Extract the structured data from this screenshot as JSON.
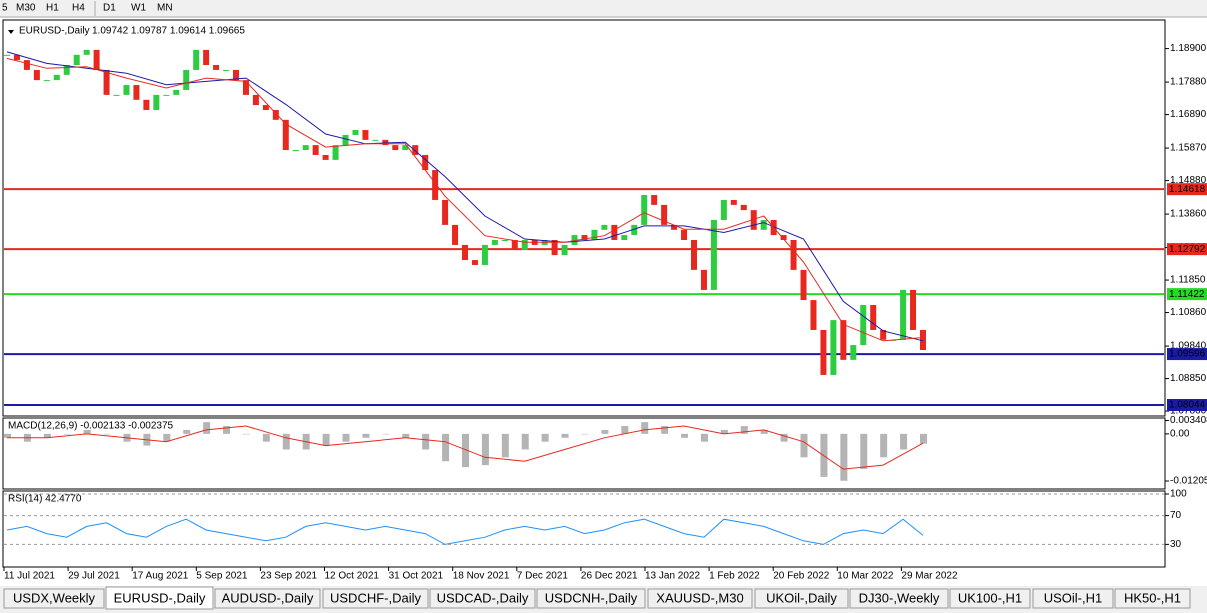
{
  "toolbar": {
    "timeframes": [
      "5",
      "M30",
      "H1",
      "H4",
      "D1",
      "W1",
      "MN"
    ]
  },
  "chart_data": [
    {
      "type": "candlestick",
      "title": "EURUSD-,Daily",
      "ohlc_label": "1.09742 1.09787 1.09614 1.09665",
      "up_color": "#2ecc40",
      "down_color": "#e8281e",
      "closes": [
        1.1871,
        1.1855,
        1.1825,
        1.1794,
        1.1794,
        1.181,
        1.184,
        1.1871,
        1.1886,
        1.1825,
        1.1749,
        1.1749,
        1.1779,
        1.1734,
        1.1703,
        1.1749,
        1.1749,
        1.1764,
        1.1825,
        1.1886,
        1.184,
        1.1825,
        1.1825,
        1.1794,
        1.1749,
        1.1718,
        1.1703,
        1.1673,
        1.1581,
        1.1581,
        1.1596,
        1.1566,
        1.1551,
        1.1596,
        1.1627,
        1.1642,
        1.1612,
        1.1612,
        1.1596,
        1.1581,
        1.1596,
        1.1566,
        1.152,
        1.1429,
        1.1353,
        1.1292,
        1.1246,
        1.1231,
        1.1292,
        1.1307,
        1.1307,
        1.1277,
        1.1307,
        1.1292,
        1.1307,
        1.1261,
        1.1292,
        1.1322,
        1.1307,
        1.1338,
        1.1353,
        1.1307,
        1.1322,
        1.1353,
        1.1444,
        1.1414,
        1.1353,
        1.1338,
        1.1307,
        1.1216,
        1.1155,
        1.1368,
        1.1429,
        1.1414,
        1.1398,
        1.1338,
        1.1368,
        1.1322,
        1.1307,
        1.1216,
        1.1124,
        1.1033,
        1.0896,
        1.1063,
        1.0942,
        1.0987,
        1.1109,
        1.1033,
        1.1003,
        1.1003,
        1.1155,
        1.1033,
        1.0972
      ],
      "ma_fast": {
        "color": "#e8281e",
        "values": [
          1.186,
          1.183,
          1.1835,
          1.18,
          1.177,
          1.18,
          1.179,
          1.166,
          1.159,
          1.16,
          1.16,
          1.144,
          1.132,
          1.13,
          1.13,
          1.132,
          1.139,
          1.134,
          1.134,
          1.138,
          1.124,
          1.105,
          1.1,
          1.101
        ]
      },
      "ma_slow": {
        "color": "#1a1aa8",
        "values": [
          1.188,
          1.1845,
          1.183,
          1.1815,
          1.178,
          1.179,
          1.18,
          1.172,
          1.163,
          1.16,
          1.1605,
          1.15,
          1.138,
          1.131,
          1.13,
          1.131,
          1.135,
          1.135,
          1.133,
          1.136,
          1.131,
          1.112,
          1.103,
          1.1
        ]
      },
      "ylim": [
        1.0774,
        1.1971
      ],
      "yticks": [
        {
          "value": 1.189,
          "label": "1.18900"
        },
        {
          "value": 1.1788,
          "label": "1.17880"
        },
        {
          "value": 1.1689,
          "label": "1.16890"
        },
        {
          "value": 1.1587,
          "label": "1.15870"
        },
        {
          "value": 1.1488,
          "label": "1.14880"
        },
        {
          "value": 1.1386,
          "label": "1.13860"
        },
        {
          "value": 1.1284,
          "label": "1.12840"
        },
        {
          "value": 1.1185,
          "label": "1.11850"
        },
        {
          "value": 1.1086,
          "label": "1.10860"
        },
        {
          "value": 1.0984,
          "label": "1.09840"
        },
        {
          "value": 1.0885,
          "label": "1.08850"
        },
        {
          "value": 1.0786,
          "label": "1.07860"
        }
      ],
      "levels": [
        {
          "value": 1.14618,
          "color": "#e8281e"
        },
        {
          "value": 1.12792,
          "color": "#e8281e"
        },
        {
          "value": 1.11422,
          "color": "#22dd22"
        },
        {
          "value": 1.09596,
          "color": "#1a1aa8"
        },
        {
          "value": 1.08044,
          "color": "#1a1aa8"
        }
      ],
      "x_labels": [
        "11 Jul 2021",
        "29 Jul 2021",
        "17 Aug 2021",
        "5 Sep 2021",
        "23 Sep 2021",
        "12 Oct 2021",
        "31 Oct 2021",
        "18 Nov 2021",
        "7 Dec 2021",
        "26 Dec 2021",
        "13 Jan 2022",
        "1 Feb 2022",
        "20 Feb 2022",
        "10 Mar 2022",
        "29 Mar 2022"
      ]
    },
    {
      "type": "histogram",
      "title": "MACD(12,26,9) -0.002133 -0.002375",
      "color": "#b4b4b4",
      "values": [
        -0.001,
        -0.002,
        -0.001,
        0.0,
        0.001,
        0.0,
        -0.002,
        -0.003,
        -0.002,
        0.001,
        0.003,
        0.002,
        0.0,
        -0.002,
        -0.004,
        -0.004,
        -0.003,
        -0.002,
        -0.001,
        0.0,
        -0.001,
        -0.004,
        -0.007,
        -0.0085,
        -0.008,
        -0.006,
        -0.004,
        -0.002,
        -0.001,
        0.0,
        0.001,
        0.002,
        0.003,
        0.002,
        -0.001,
        -0.002,
        0.001,
        0.002,
        0.001,
        -0.002,
        -0.006,
        -0.011,
        -0.012,
        -0.009,
        -0.006,
        -0.004,
        -0.0025
      ],
      "signal": {
        "color": "#e8281e",
        "values": [
          -0.001,
          -0.001,
          0.0,
          -0.001,
          -0.002,
          0.001,
          0.002,
          -0.001,
          -0.003,
          -0.002,
          -0.001,
          -0.002,
          -0.006,
          -0.007,
          -0.004,
          -0.001,
          0.001,
          0.002,
          0.0,
          0.001,
          -0.002,
          -0.009,
          -0.008,
          -0.0024
        ]
      },
      "ylim": [
        -0.0141,
        0.0038
      ],
      "yticks": [
        0.003408,
        {
          "value": 0,
          "label": "0.00"
        },
        -0.012054
      ]
    },
    {
      "type": "line",
      "title": "RSI(14) 42.4770",
      "color": "#1e90ff",
      "values": [
        50,
        55,
        45,
        40,
        55,
        60,
        45,
        40,
        55,
        65,
        50,
        45,
        40,
        35,
        40,
        55,
        60,
        55,
        50,
        55,
        50,
        45,
        30,
        35,
        40,
        50,
        55,
        50,
        55,
        45,
        50,
        60,
        65,
        55,
        45,
        40,
        65,
        60,
        55,
        45,
        35,
        30,
        45,
        50,
        45,
        65,
        42.477
      ],
      "ylim": [
        0,
        100
      ],
      "yticks": [
        100,
        70,
        30
      ]
    }
  ],
  "tabs": [
    "USDX,Weekly",
    "EURUSD-,Daily",
    "AUDUSD-,Daily",
    "USDCHF-,Daily",
    "USDCAD-,Daily",
    "USDCNH-,Daily",
    "XAUUSD-,M30",
    "UKOil-,Daily",
    "DJ30-,Weekly",
    "UK100-,H1",
    "USOil-,H1",
    "HK50-,H1"
  ],
  "active_tab": 1
}
